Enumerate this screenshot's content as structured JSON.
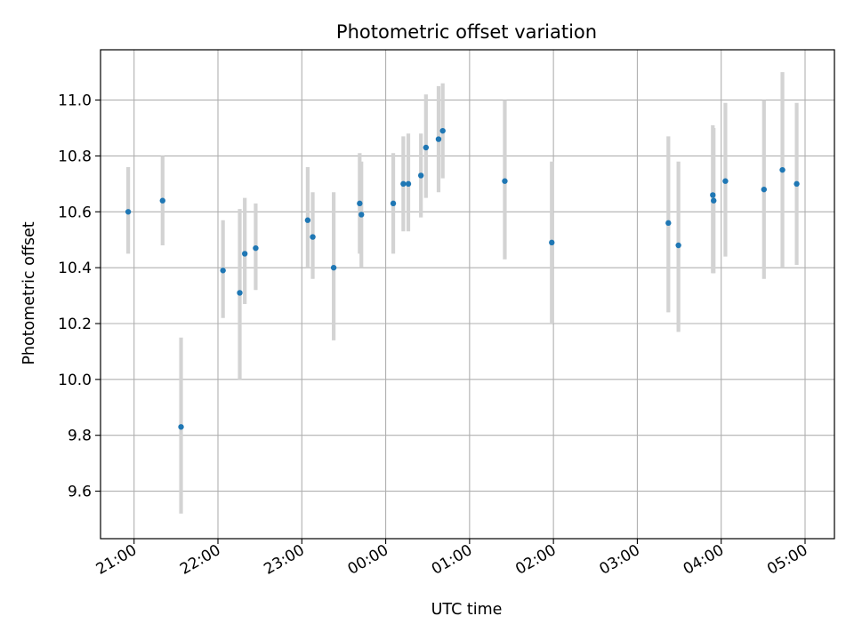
{
  "chart_data": {
    "type": "scatter",
    "title": "Photometric offset variation",
    "xlabel": "UTC time",
    "ylabel": "Photometric offset",
    "x_unit": "hours of UTC clock; values >= 24 fall after 00:00 of the next day",
    "xlim": [
      20.6,
      29.35
    ],
    "ylim": [
      9.43,
      11.18
    ],
    "grid": true,
    "x_ticks": [
      {
        "value": 21,
        "label": "21:00"
      },
      {
        "value": 22,
        "label": "22:00"
      },
      {
        "value": 23,
        "label": "23:00"
      },
      {
        "value": 24,
        "label": "00:00"
      },
      {
        "value": 25,
        "label": "01:00"
      },
      {
        "value": 26,
        "label": "02:00"
      },
      {
        "value": 27,
        "label": "03:00"
      },
      {
        "value": 28,
        "label": "04:00"
      },
      {
        "value": 29,
        "label": "05:00"
      }
    ],
    "y_ticks": [
      {
        "value": 9.6,
        "label": "9.6"
      },
      {
        "value": 9.8,
        "label": "9.8"
      },
      {
        "value": 10.0,
        "label": "10.0"
      },
      {
        "value": 10.2,
        "label": "10.2"
      },
      {
        "value": 10.4,
        "label": "10.4"
      },
      {
        "value": 10.6,
        "label": "10.6"
      },
      {
        "value": 10.8,
        "label": "10.8"
      },
      {
        "value": 11.0,
        "label": "11.0"
      }
    ],
    "series": [
      {
        "marker_color": "#1f77b4",
        "errorbar_color": "#d3d3d3",
        "points": [
          {
            "x": 20.93,
            "y": 10.6,
            "yerr_low": 10.45,
            "yerr_high": 10.76
          },
          {
            "x": 21.34,
            "y": 10.64,
            "yerr_low": 10.48,
            "yerr_high": 10.8
          },
          {
            "x": 21.56,
            "y": 9.83,
            "yerr_low": 9.52,
            "yerr_high": 10.15
          },
          {
            "x": 22.06,
            "y": 10.39,
            "yerr_low": 10.22,
            "yerr_high": 10.57
          },
          {
            "x": 22.26,
            "y": 10.31,
            "yerr_low": 10.0,
            "yerr_high": 10.61
          },
          {
            "x": 22.32,
            "y": 10.45,
            "yerr_low": 10.27,
            "yerr_high": 10.65
          },
          {
            "x": 22.45,
            "y": 10.47,
            "yerr_low": 10.32,
            "yerr_high": 10.63
          },
          {
            "x": 23.07,
            "y": 10.57,
            "yerr_low": 10.4,
            "yerr_high": 10.76
          },
          {
            "x": 23.13,
            "y": 10.51,
            "yerr_low": 10.36,
            "yerr_high": 10.67
          },
          {
            "x": 23.38,
            "y": 10.4,
            "yerr_low": 10.14,
            "yerr_high": 10.67
          },
          {
            "x": 23.69,
            "y": 10.63,
            "yerr_low": 10.45,
            "yerr_high": 10.81
          },
          {
            "x": 23.71,
            "y": 10.59,
            "yerr_low": 10.4,
            "yerr_high": 10.78
          },
          {
            "x": 24.09,
            "y": 10.63,
            "yerr_low": 10.45,
            "yerr_high": 10.81
          },
          {
            "x": 24.21,
            "y": 10.7,
            "yerr_low": 10.53,
            "yerr_high": 10.87
          },
          {
            "x": 24.27,
            "y": 10.7,
            "yerr_low": 10.53,
            "yerr_high": 10.88
          },
          {
            "x": 24.42,
            "y": 10.73,
            "yerr_low": 10.58,
            "yerr_high": 10.88
          },
          {
            "x": 24.48,
            "y": 10.83,
            "yerr_low": 10.65,
            "yerr_high": 11.02
          },
          {
            "x": 24.63,
            "y": 10.86,
            "yerr_low": 10.67,
            "yerr_high": 11.05
          },
          {
            "x": 24.68,
            "y": 10.89,
            "yerr_low": 10.72,
            "yerr_high": 11.06
          },
          {
            "x": 25.42,
            "y": 10.71,
            "yerr_low": 10.43,
            "yerr_high": 11.0
          },
          {
            "x": 25.98,
            "y": 10.49,
            "yerr_low": 10.2,
            "yerr_high": 10.78
          },
          {
            "x": 27.37,
            "y": 10.56,
            "yerr_low": 10.24,
            "yerr_high": 10.87
          },
          {
            "x": 27.49,
            "y": 10.48,
            "yerr_low": 10.17,
            "yerr_high": 10.78
          },
          {
            "x": 27.9,
            "y": 10.66,
            "yerr_low": 10.38,
            "yerr_high": 10.91
          },
          {
            "x": 27.91,
            "y": 10.64,
            "yerr_low": 10.38,
            "yerr_high": 10.9
          },
          {
            "x": 28.05,
            "y": 10.71,
            "yerr_low": 10.44,
            "yerr_high": 10.99
          },
          {
            "x": 28.51,
            "y": 10.68,
            "yerr_low": 10.36,
            "yerr_high": 11.0
          },
          {
            "x": 28.73,
            "y": 10.75,
            "yerr_low": 10.4,
            "yerr_high": 11.1
          },
          {
            "x": 28.9,
            "y": 10.7,
            "yerr_low": 10.41,
            "yerr_high": 10.99
          }
        ]
      }
    ]
  }
}
